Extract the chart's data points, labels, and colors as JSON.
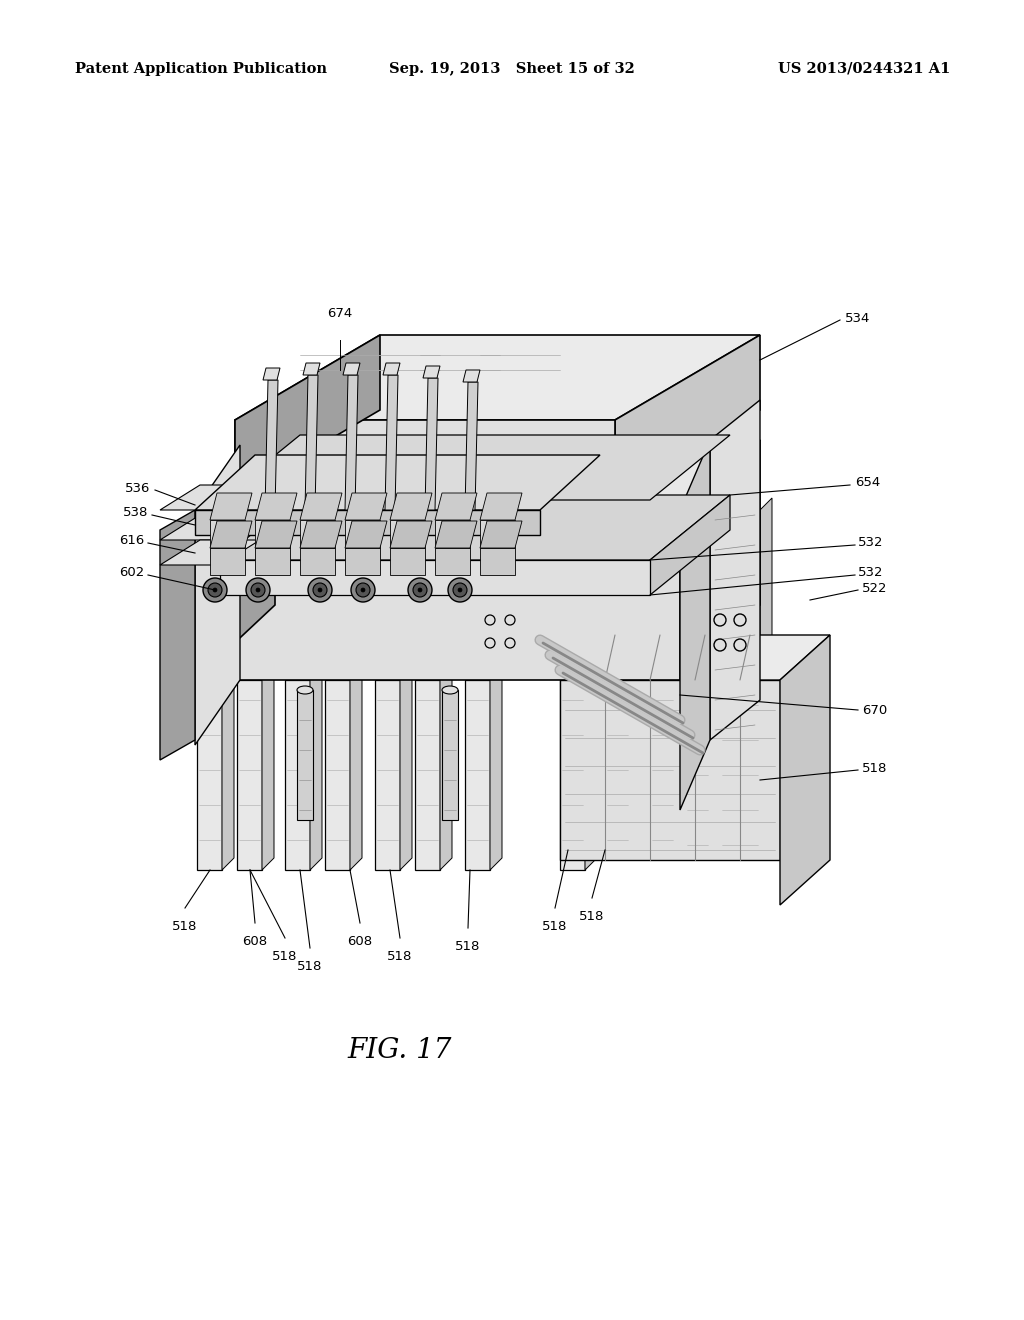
{
  "background_color": "#ffffff",
  "header_left": "Patent Application Publication",
  "header_center": "Sep. 19, 2013  Sheet 15 of 32",
  "header_right": "US 2013/0244321 A1",
  "figure_label": "FIG. 17",
  "header_fontsize": 10.5,
  "figure_label_fontsize": 20
}
